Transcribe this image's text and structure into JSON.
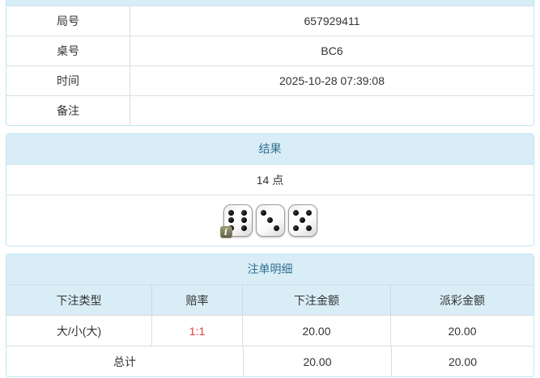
{
  "info_panel": {
    "rows": [
      {
        "label": "局号",
        "value": "657929411"
      },
      {
        "label": "桌号",
        "value": "BC6"
      },
      {
        "label": "时间",
        "value": "2025-10-28 07:39:08"
      },
      {
        "label": "备注",
        "value": ""
      }
    ]
  },
  "result_panel": {
    "title": "结果",
    "points": "14 点",
    "dice": [
      6,
      3,
      5
    ],
    "info_badge_glyph": "i"
  },
  "bets_panel": {
    "title": "注单明细",
    "columns": [
      "下注类型",
      "赔率",
      "下注金额",
      "派彩金额"
    ],
    "rows": [
      {
        "bet_type": "大/小(大)",
        "odds": "1:1",
        "bet_amount": "20.00",
        "payout_amount": "20.00"
      }
    ],
    "total": {
      "label": "总计",
      "bet_amount": "20.00",
      "payout_amount": "20.00"
    }
  },
  "colors": {
    "panel_border": "#bce8f1",
    "heading_bg": "#d9edf7",
    "heading_text": "#31708f",
    "table_border": "#dddddd",
    "odds_red": "#e4393c"
  }
}
